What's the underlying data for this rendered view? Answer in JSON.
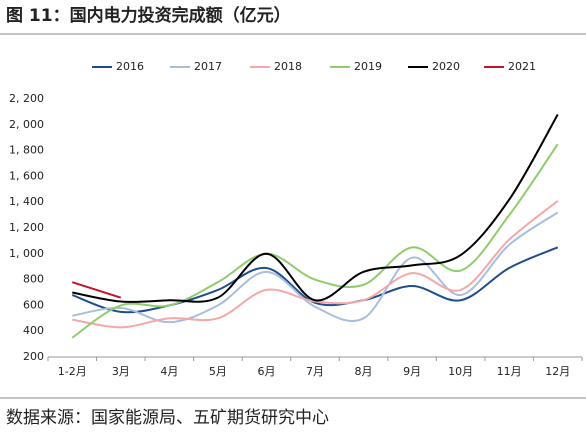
{
  "chart_data": {
    "type": "line",
    "title": "图 11：国内电力投资完成额（亿元）",
    "source": "数据来源：国家能源局、五矿期货研究中心",
    "categories": [
      "1-2月",
      "3月",
      "4月",
      "5月",
      "6月",
      "7月",
      "8月",
      "9月",
      "10月",
      "11月",
      "12月"
    ],
    "ylim": [
      200,
      2200
    ],
    "yticks": [
      200,
      400,
      600,
      800,
      {
        "value": 1000,
        "label": "1, 000"
      },
      {
        "value": 1200,
        "label": "1, 200"
      },
      {
        "value": 1400,
        "label": "1, 400"
      },
      {
        "value": 1600,
        "label": "1, 600"
      },
      {
        "value": 1800,
        "label": "1, 800"
      },
      {
        "value": 2000,
        "label": "2, 000"
      },
      {
        "value": 2200,
        "label": "2, 200"
      }
    ],
    "grid": false,
    "legend": "top",
    "series": [
      {
        "name": "2016",
        "color": "#1f4e8c",
        "values": [
          680,
          550,
          600,
          720,
          890,
          620,
          640,
          750,
          640,
          890,
          1050
        ]
      },
      {
        "name": "2017",
        "color": "#a9bde0",
        "values": [
          520,
          580,
          470,
          600,
          860,
          590,
          500,
          970,
          680,
          1070,
          1320
        ]
      },
      {
        "name": "2018",
        "color": "#f4a8a8",
        "values": [
          490,
          430,
          500,
          500,
          720,
          630,
          640,
          850,
          720,
          1110,
          1410
        ]
      },
      {
        "name": "2019",
        "color": "#8fcc6e",
        "values": [
          350,
          600,
          600,
          780,
          1000,
          800,
          760,
          1050,
          870,
          1300,
          1850
        ]
      },
      {
        "name": "2020",
        "color": "#000000",
        "values": [
          700,
          630,
          640,
          660,
          1000,
          640,
          860,
          910,
          990,
          1420,
          2080
        ]
      },
      {
        "name": "2021",
        "color": "#c0152a",
        "values": [
          780,
          660,
          null,
          null,
          null,
          null,
          null,
          null,
          null,
          null,
          null
        ]
      }
    ]
  }
}
